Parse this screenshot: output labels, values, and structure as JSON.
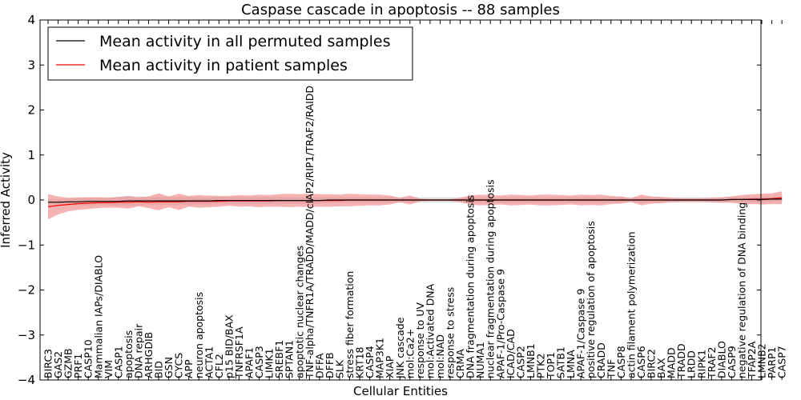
{
  "chart_data": {
    "type": "line",
    "title": "Caspase cascade in apoptosis -- 88 samples",
    "xlabel": "Cellular Entities",
    "ylabel": "Inferred Activity",
    "ylim": [
      -4,
      4
    ],
    "yticks": [
      -4,
      -3,
      -2,
      -1,
      0,
      1,
      2,
      3,
      4
    ],
    "legend_position": "top-left",
    "categories": [
      "BIRC3",
      "GAS2",
      "GZMB",
      "PRF1",
      "CASP10",
      "Mammalian IAPs/DIABLO",
      "VIM",
      "CASP1",
      "apoptosis",
      "DNA repair",
      "ARHGDIB",
      "BID",
      "GSN",
      "CYCS",
      "APP",
      "neuron apoptosis",
      "ACTA1",
      "CFL2",
      "p15 BID/BAX",
      "TNFRSF1A",
      "APAF1",
      "CASP3",
      "LIMK1",
      "SREBF1",
      "SPTAN1",
      "apoptotic nuclear changes",
      "TNF-alpha/TNFR1A/TRADD/MADD/cIAP2/RIP1/TRAF2/RAIDD",
      "DFFA",
      "DFFB",
      "SLK",
      "stress fiber formation",
      "KRT18",
      "CASP4",
      "MAP3K1",
      "XIAP",
      "JNK cascade",
      "mol:Ca2+",
      "response to UV",
      "mol:Activated DNA",
      "mol:NAD",
      "response to stress",
      "CRMA",
      "DNA fragmentation during apoptosis",
      "NUMA1",
      "nuclear fragmentation during apoptosis",
      "APAF-1/Pro-Caspase 9",
      "ICAD/CAD",
      "CASP2",
      "LMNB1",
      "PTK2",
      "TOP1",
      "SATB1",
      "LMNA",
      "APAF-1/Caspase 9",
      "positive regulation of apoptosis",
      "CRADD",
      "TNF",
      "CASP8",
      "actin filament polymerization",
      "CASP6",
      "BIRC2",
      "BAX",
      "MADD",
      "TRADD",
      "LRDD",
      "RIPK1",
      "TRAF2",
      "DIABLO",
      "CASP9",
      "negative regulation of DNA binding",
      "TFAP2A",
      "LMNB2",
      "PARP1",
      "CASP7"
    ],
    "series": [
      {
        "name": "Mean activity in all permuted samples",
        "color": "#000000",
        "values": [
          -0.05,
          -0.05,
          -0.04,
          -0.04,
          -0.03,
          -0.03,
          -0.03,
          -0.03,
          -0.02,
          -0.02,
          -0.02,
          -0.02,
          -0.02,
          -0.02,
          -0.02,
          -0.02,
          -0.02,
          -0.01,
          -0.01,
          -0.01,
          -0.01,
          -0.01,
          -0.01,
          -0.01,
          -0.01,
          -0.01,
          -0.01,
          -0.01,
          0,
          0,
          0,
          0,
          0,
          0,
          0,
          0,
          0,
          0,
          0,
          0,
          0,
          0,
          0,
          0,
          0,
          0,
          0,
          0,
          0,
          0,
          0,
          0,
          0,
          0,
          0,
          0,
          0,
          0,
          0,
          0,
          0,
          0,
          0,
          0,
          0,
          0,
          0,
          0,
          0.01,
          0.01,
          0.01,
          0.01,
          0.02,
          0.02
        ],
        "band": [
          0.06,
          0.07,
          0.08,
          0.08,
          0.09,
          0.09,
          0.09,
          0.1,
          0.1,
          0.1,
          0.09,
          0.09,
          0.09,
          0.09,
          0.09,
          0.08,
          0.08,
          0.08,
          0.08,
          0.08,
          0.08,
          0.08,
          0.08,
          0.07,
          0.07,
          0.07,
          0.07,
          0.07,
          0.06,
          0.06,
          0.06,
          0.06,
          0.06,
          0.06,
          0.06,
          0.06,
          0.06,
          0.06,
          0.06,
          0.06,
          0.06,
          0.06,
          0.06,
          0.06,
          0.06,
          0.06,
          0.06,
          0.06,
          0.06,
          0.06,
          0.06,
          0.06,
          0.06,
          0.06,
          0.06,
          0.06,
          0.06,
          0.06,
          0.06,
          0.06,
          0.06,
          0.06,
          0.06,
          0.06,
          0.06,
          0.06,
          0.06,
          0.06,
          0.06,
          0.06,
          0.06,
          0.06,
          0.06,
          0.06
        ]
      },
      {
        "name": "Mean activity in patient samples",
        "color": "#ff0000",
        "values": [
          -0.15,
          -0.12,
          -0.1,
          -0.08,
          -0.07,
          -0.06,
          -0.06,
          -0.05,
          -0.05,
          -0.04,
          -0.05,
          -0.04,
          -0.04,
          -0.04,
          -0.03,
          -0.03,
          -0.03,
          -0.03,
          -0.02,
          -0.02,
          -0.02,
          -0.02,
          -0.02,
          -0.01,
          -0.01,
          -0.01,
          -0.01,
          -0.01,
          -0.01,
          -0.01,
          0,
          0,
          0,
          0,
          0,
          0,
          0,
          0,
          0,
          0,
          0,
          0,
          0,
          0,
          0,
          0,
          0,
          0,
          0,
          0,
          0,
          0,
          0,
          0,
          0,
          0,
          0,
          0,
          0,
          0,
          0,
          0,
          0,
          0,
          0,
          0,
          0,
          0,
          0.01,
          0.01,
          0.02,
          0.02,
          0.03,
          0.05
        ],
        "band": [
          0.28,
          0.2,
          0.15,
          0.14,
          0.13,
          0.12,
          0.11,
          0.12,
          0.14,
          0.1,
          0.13,
          0.19,
          0.12,
          0.18,
          0.12,
          0.14,
          0.13,
          0.12,
          0.11,
          0.13,
          0.12,
          0.14,
          0.13,
          0.14,
          0.15,
          0.14,
          0.15,
          0.14,
          0.14,
          0.13,
          0.14,
          0.13,
          0.12,
          0.12,
          0.1,
          0.05,
          0.1,
          0.03,
          0.02,
          0.02,
          0.02,
          0.05,
          0.1,
          0.12,
          0.11,
          0.1,
          0.12,
          0.11,
          0.1,
          0.12,
          0.12,
          0.11,
          0.1,
          0.12,
          0.11,
          0.12,
          0.09,
          0.08,
          0.04,
          0.12,
          0.08,
          0.07,
          0.05,
          0.04,
          0.04,
          0.04,
          0.05,
          0.06,
          0.07,
          0.1,
          0.11,
          0.12,
          0.12,
          0.14
        ]
      }
    ]
  }
}
